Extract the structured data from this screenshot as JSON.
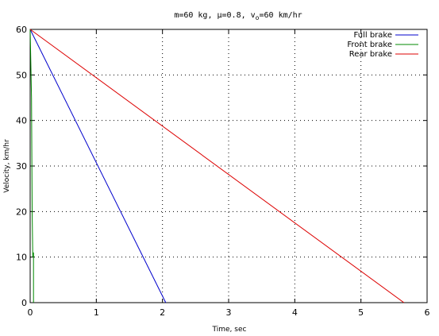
{
  "chart_data": {
    "type": "line",
    "title": "m=60 kg, μ=0.8, v",
    "title_sub": "o",
    "title_tail": "=60 km/hr",
    "xlabel": "Time, sec",
    "ylabel": "Velocity, km/hr",
    "xlim": [
      0,
      6
    ],
    "ylim": [
      0,
      60
    ],
    "xticks": [
      0,
      1,
      2,
      3,
      4,
      5,
      6
    ],
    "yticks": [
      0,
      10,
      20,
      30,
      40,
      50,
      60
    ],
    "grid": true,
    "legend_position": "top-right",
    "series": [
      {
        "name": "Full brake",
        "color": "#0000cc",
        "x": [
          0,
          2.05
        ],
        "y": [
          60,
          0
        ]
      },
      {
        "name": "Front brake",
        "color": "#008800",
        "x": [
          0,
          0.02,
          0.03,
          0.04,
          0.05,
          0.05
        ],
        "y": [
          60,
          45,
          20,
          10,
          11,
          0
        ]
      },
      {
        "name": "Rear brake",
        "color": "#dd0000",
        "x": [
          0,
          5.65
        ],
        "y": [
          60,
          0
        ]
      }
    ]
  }
}
